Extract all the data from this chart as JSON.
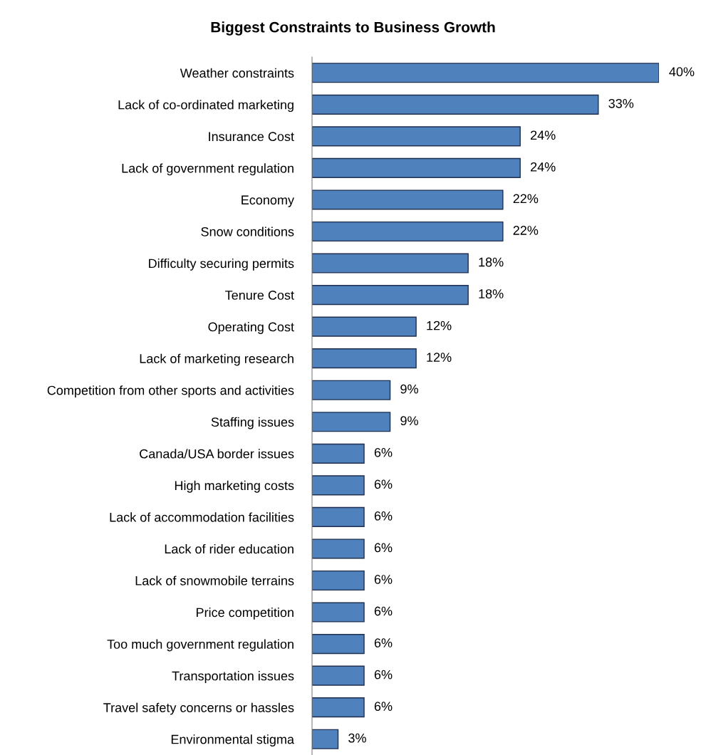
{
  "chart_data": {
    "type": "bar",
    "orientation": "horizontal",
    "title": "Biggest Constraints to Business Growth",
    "categories": [
      "Weather constraints",
      "Lack of co-ordinated marketing",
      "Insurance Cost",
      "Lack of government regulation",
      "Economy",
      "Snow conditions",
      "Difficulty securing permits",
      "Tenure Cost",
      "Operating Cost",
      "Lack of marketing research",
      "Competition from other sports and activities",
      "Staffing issues",
      "Canada/USA border issues",
      "High marketing costs",
      "Lack of accommodation facilities",
      "Lack of rider education",
      "Lack of snowmobile terrains",
      "Price competition",
      "Too much government regulation",
      "Transportation issues",
      "Travel safety concerns or hassles",
      "Environmental stigma"
    ],
    "values": [
      40,
      33,
      24,
      24,
      22,
      22,
      18,
      18,
      12,
      12,
      9,
      9,
      6,
      6,
      6,
      6,
      6,
      6,
      6,
      6,
      6,
      3
    ],
    "value_labels": [
      "40%",
      "33%",
      "24%",
      "24%",
      "22%",
      "22%",
      "18%",
      "18%",
      "12%",
      "12%",
      "9%",
      "9%",
      "6%",
      "6%",
      "6%",
      "6%",
      "6%",
      "6%",
      "6%",
      "6%",
      "6%",
      "3%"
    ],
    "color": "#4f81bd",
    "tick_labels": "y",
    "grid": false,
    "legend": false
  }
}
